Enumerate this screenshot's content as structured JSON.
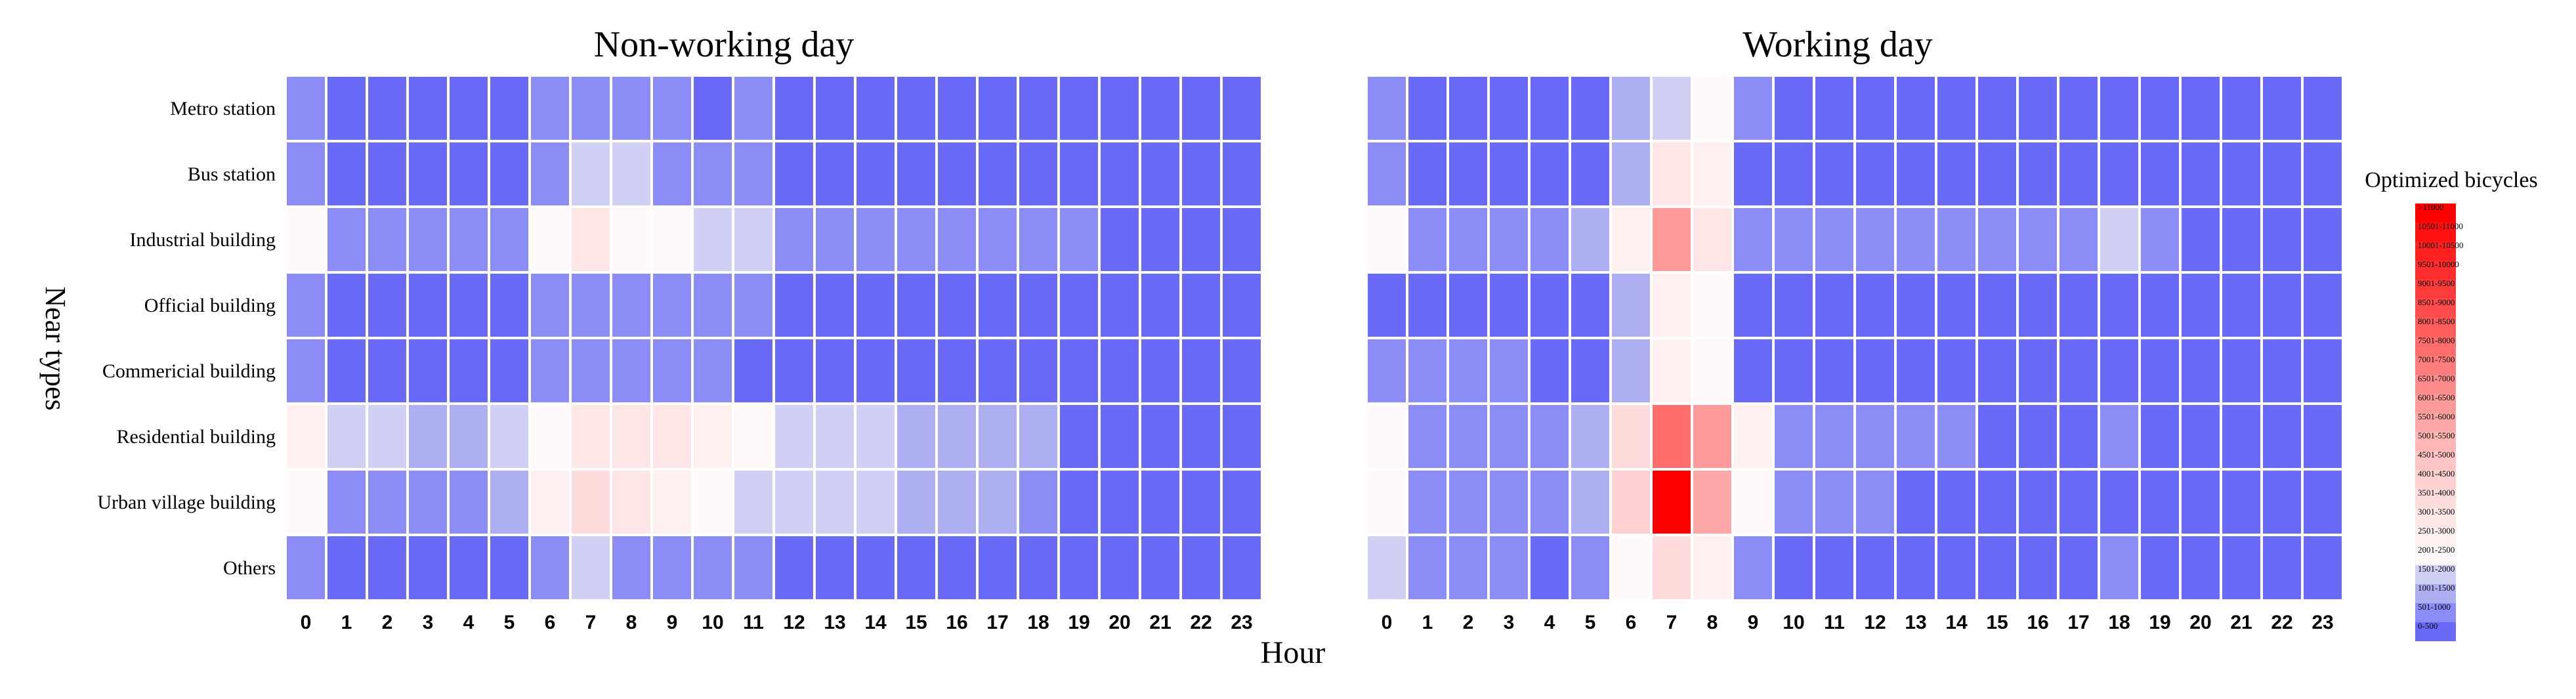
{
  "chart_data": {
    "type": "heatmap",
    "ylabel": "Near types",
    "xlabel": "Hour",
    "legend": {
      "title": "Optimized bicycles",
      "placement": "right",
      "bins": [
        "0-500",
        "501-1000",
        "1001-1500",
        "1501-2000",
        "2001-2500",
        "2501-3000",
        "3001-3500",
        "3501-4000",
        "4001-4500",
        "4501-5000",
        "5001-5500",
        "5501-6000",
        "6001-6500",
        "6501-7000",
        "7001-7500",
        "7501-8000",
        "8001-8500",
        "8501-9000",
        "9001-9500",
        "9501-10000",
        "10001-10500",
        "10501-11000",
        ">11000"
      ],
      "colors": [
        "#6a6af8",
        "#8c8cf6",
        "#aeaef2",
        "#d0d0f4",
        "#fff8f8",
        "#fff0f0",
        "#ffe6e6",
        "#ffdcdc",
        "#ffd0d0",
        "#ffc4c4",
        "#ffb6b6",
        "#ffa8a8",
        "#ff9a9a",
        "#ff8c8c",
        "#ff7c7c",
        "#ff6c6c",
        "#ff5c5c",
        "#ff4c4c",
        "#ff3c3c",
        "#ff2e2e",
        "#ff2020",
        "#ff1010",
        "#ff0000"
      ]
    },
    "hours": [
      "0",
      "1",
      "2",
      "3",
      "4",
      "5",
      "6",
      "7",
      "8",
      "9",
      "10",
      "11",
      "12",
      "13",
      "14",
      "15",
      "16",
      "17",
      "18",
      "19",
      "20",
      "21",
      "22",
      "23"
    ],
    "row_labels": [
      "Metro station",
      "Bus station",
      "Industrial building",
      "Official building",
      "Commericial building",
      "Residential building",
      "Urban village building",
      "Others"
    ],
    "panels": [
      {
        "title": "Non-working day",
        "levels": [
          [
            1,
            0,
            0,
            0,
            0,
            0,
            1,
            1,
            1,
            1,
            0,
            1,
            0,
            0,
            0,
            0,
            0,
            0,
            0,
            0,
            0,
            0,
            0,
            0
          ],
          [
            1,
            0,
            0,
            0,
            0,
            0,
            1,
            3,
            3,
            1,
            1,
            1,
            0,
            0,
            0,
            0,
            0,
            0,
            0,
            0,
            0,
            0,
            0,
            0
          ],
          [
            4,
            1,
            1,
            1,
            1,
            1,
            4,
            6,
            4,
            4,
            3,
            3,
            1,
            1,
            1,
            1,
            1,
            1,
            1,
            1,
            0,
            0,
            0,
            0
          ],
          [
            1,
            0,
            0,
            0,
            0,
            0,
            1,
            1,
            1,
            1,
            1,
            1,
            0,
            0,
            0,
            0,
            0,
            0,
            0,
            0,
            0,
            0,
            0,
            0
          ],
          [
            1,
            0,
            0,
            0,
            0,
            0,
            1,
            1,
            1,
            1,
            1,
            0,
            0,
            0,
            0,
            0,
            0,
            0,
            0,
            0,
            0,
            0,
            0,
            0
          ],
          [
            5,
            3,
            3,
            2,
            2,
            3,
            4,
            6,
            6,
            6,
            5,
            4,
            3,
            3,
            3,
            2,
            2,
            2,
            2,
            0,
            0,
            0,
            0,
            0
          ],
          [
            4,
            1,
            1,
            1,
            1,
            2,
            5,
            7,
            6,
            5,
            4,
            3,
            3,
            3,
            3,
            2,
            2,
            2,
            1,
            0,
            0,
            0,
            0,
            0
          ],
          [
            1,
            0,
            0,
            0,
            0,
            0,
            1,
            3,
            1,
            1,
            1,
            1,
            0,
            0,
            0,
            0,
            0,
            0,
            0,
            0,
            0,
            0,
            0,
            0
          ]
        ]
      },
      {
        "title": "Working day",
        "levels": [
          [
            1,
            0,
            0,
            0,
            0,
            0,
            2,
            3,
            4,
            1,
            0,
            0,
            0,
            0,
            0,
            0,
            0,
            0,
            0,
            0,
            0,
            0,
            0,
            0
          ],
          [
            1,
            0,
            0,
            0,
            0,
            0,
            2,
            6,
            5,
            0,
            0,
            0,
            0,
            0,
            0,
            0,
            0,
            0,
            0,
            0,
            0,
            0,
            0,
            0
          ],
          [
            4,
            1,
            1,
            1,
            1,
            2,
            5,
            12,
            6,
            1,
            1,
            1,
            1,
            1,
            1,
            1,
            1,
            1,
            3,
            1,
            0,
            0,
            0,
            0
          ],
          [
            0,
            0,
            0,
            0,
            0,
            0,
            2,
            5,
            4,
            0,
            0,
            0,
            0,
            0,
            0,
            0,
            0,
            0,
            0,
            0,
            0,
            0,
            0,
            0
          ],
          [
            1,
            1,
            1,
            1,
            0,
            0,
            2,
            5,
            4,
            0,
            0,
            0,
            0,
            0,
            0,
            0,
            0,
            0,
            0,
            0,
            0,
            0,
            0,
            0
          ],
          [
            4,
            1,
            1,
            1,
            1,
            2,
            7,
            15,
            12,
            5,
            1,
            1,
            1,
            1,
            1,
            0,
            0,
            0,
            1,
            0,
            0,
            0,
            0,
            0
          ],
          [
            4,
            1,
            1,
            1,
            1,
            2,
            8,
            22,
            11,
            4,
            1,
            1,
            1,
            0,
            0,
            0,
            0,
            0,
            0,
            0,
            0,
            0,
            0,
            0
          ],
          [
            3,
            1,
            1,
            1,
            0,
            1,
            4,
            7,
            5,
            1,
            0,
            0,
            0,
            0,
            0,
            0,
            0,
            0,
            1,
            0,
            0,
            0,
            0,
            0
          ]
        ]
      }
    ]
  }
}
